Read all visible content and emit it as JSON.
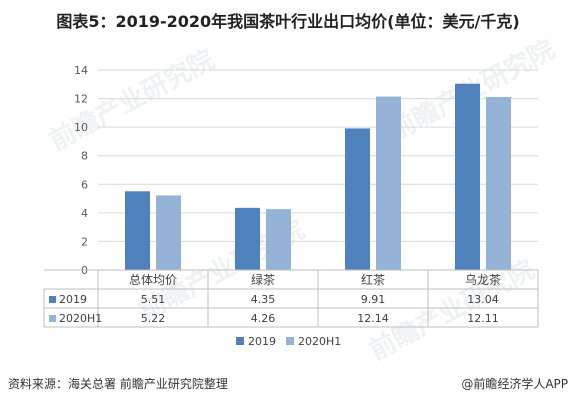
{
  "title": "图表5：2019-2020年我国茶叶行业出口均价(单位：美元/千克)",
  "footer": {
    "source": "资料来源：海关总署 前瞻产业研究院整理",
    "brand": "@前瞻经济学人APP"
  },
  "watermark": "前瞻产业研究院",
  "colors": {
    "s2019": "#4f81bd",
    "s2020": "#95b3d7",
    "grid": "#d9d9d9",
    "axis": "#bfbfbf"
  },
  "chart_data": {
    "type": "bar",
    "categories": [
      "总体均价",
      "绿茶",
      "红茶",
      "乌龙茶"
    ],
    "series": [
      {
        "name": "2019",
        "values": [
          5.51,
          4.35,
          9.91,
          13.04
        ]
      },
      {
        "name": "2020H1",
        "values": [
          5.22,
          4.26,
          12.14,
          12.11
        ]
      }
    ],
    "table_values": [
      [
        "5.51",
        "4.35",
        "9.91",
        "13.04"
      ],
      [
        "5.22",
        "4.26",
        "12.14",
        "12.11"
      ]
    ],
    "yticks": [
      "0",
      "2",
      "4",
      "6",
      "8",
      "10",
      "12",
      "14"
    ],
    "ylim": [
      0,
      14
    ],
    "grid": true,
    "legend": "bottom"
  }
}
